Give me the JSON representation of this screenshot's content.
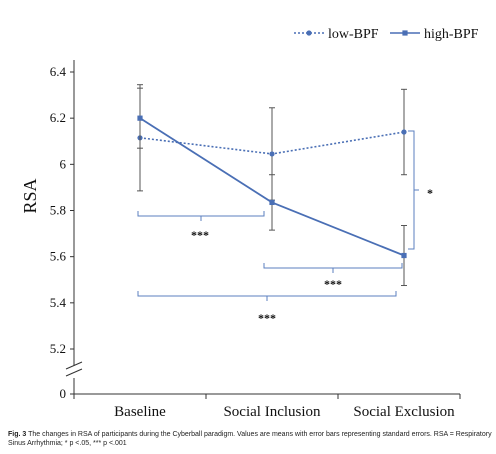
{
  "chart_data": {
    "type": "line",
    "title": "",
    "xlabel": "",
    "ylabel": "RSA",
    "categories": [
      "Baseline",
      "Social Inclusion",
      "Social Exclusion"
    ],
    "y_ticks": [
      "0",
      "5.2",
      "5.4",
      "5.6",
      "5.8",
      "6",
      "6.2",
      "6.4"
    ],
    "axis_break": true,
    "legend_position": "top-right",
    "series": [
      {
        "name": "low-BPF",
        "style": "dotted",
        "color": "#4a6fb5",
        "values": [
          6.115,
          6.045,
          6.14
        ],
        "errors": [
          0.23,
          0.2,
          0.185
        ]
      },
      {
        "name": "high-BPF",
        "style": "solid",
        "color": "#4a6fb5",
        "values": [
          6.2,
          5.835,
          5.605
        ],
        "errors": [
          0.13,
          0.12,
          0.13
        ]
      }
    ],
    "annotations": [
      {
        "label": "***",
        "between": [
          "Baseline",
          "Social Inclusion"
        ]
      },
      {
        "label": "***",
        "between": [
          "Social Inclusion",
          "Social Exclusion"
        ]
      },
      {
        "label": "***",
        "between": [
          "Baseline",
          "Social Exclusion"
        ]
      },
      {
        "label": "*",
        "between": [
          "low-BPF",
          "high-BPF"
        ],
        "at": "Social Exclusion"
      }
    ]
  },
  "caption": {
    "label": "Fig. 3",
    "text": "The changes in RSA of participants during the Cyberball paradigm. Values are means with error bars representing standard errors. RSA = Respiratory Sinus Arrhythmia; * p <.05, *** p <.001"
  }
}
